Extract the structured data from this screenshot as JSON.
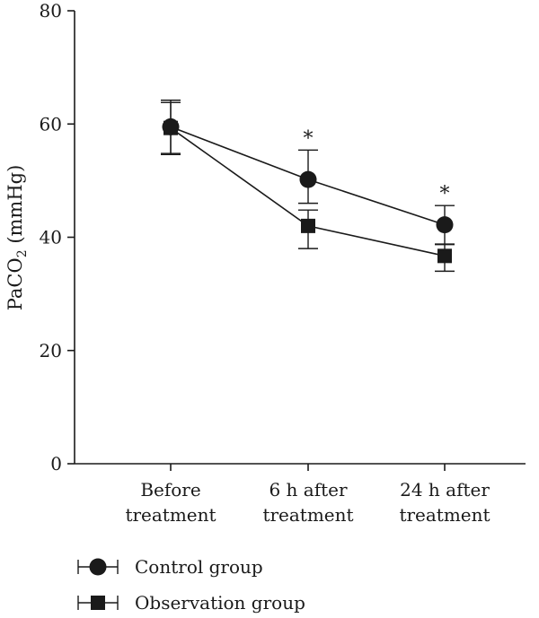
{
  "chart_data": {
    "type": "line",
    "title": "",
    "ylabel": {
      "base": "PaCO",
      "sub": "2",
      "unit": " (mmHg)"
    },
    "ylim": [
      0,
      80
    ],
    "yticks": [
      "0",
      "20",
      "40",
      "60",
      "80"
    ],
    "ytick_values": [
      0,
      20,
      40,
      60,
      80
    ],
    "grid": false,
    "categories": [
      [
        "Before",
        "treatment"
      ],
      [
        "6 h after",
        "treatment"
      ],
      [
        "24 h after",
        "treatment"
      ]
    ],
    "series": [
      {
        "name": "Control group",
        "marker": "circle",
        "values": [
          59.5,
          50.2,
          42.2
        ],
        "err_upper": [
          64.2,
          55.4,
          45.6
        ],
        "err_lower": [
          54.8,
          46.0,
          38.8
        ],
        "annotations": [
          "",
          "*",
          "*"
        ]
      },
      {
        "name": "Observation group",
        "marker": "square",
        "values": [
          59.3,
          42.0,
          36.7
        ],
        "err_upper": [
          63.8,
          44.8,
          38.7
        ],
        "err_lower": [
          54.6,
          38.0,
          34.0
        ],
        "annotations": [
          "",
          "",
          ""
        ]
      }
    ],
    "legend_placement": "bottom-left",
    "color": "#1a1a1a"
  }
}
